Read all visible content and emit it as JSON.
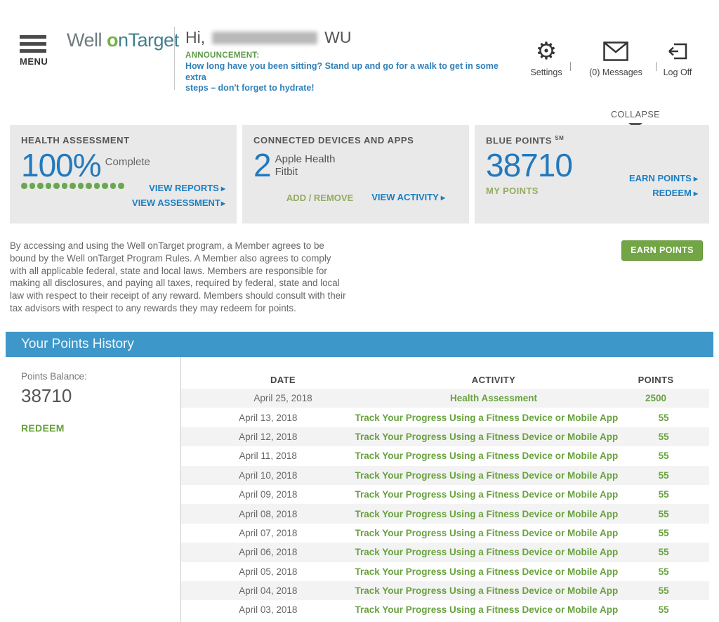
{
  "colors": {
    "accent_blue": "#2279bd",
    "link_blue": "#1b7ec2",
    "bar_blue": "#3e97c9",
    "green_strong": "#68a23e",
    "green_muted": "#94ab5e",
    "button_green": "#72a544",
    "panel_gray": "#e9e9e9"
  },
  "icons": {
    "arrow_right": "▶",
    "gear": "⚙"
  },
  "header": {
    "menu_label": "MENU",
    "logo": {
      "part1": "Well ",
      "part2": "o",
      "part3": "nTarget"
    },
    "greeting": {
      "prefix": "Hi,",
      "suffix": "WU"
    },
    "announcement_label": "ANNOUNCEMENT:",
    "announcement_text": "How long have you been sitting? Stand up and go for a walk to get in some extra\nsteps – don't forget to hydrate!",
    "actions": {
      "settings": "Settings",
      "messages": "(0) Messages",
      "logoff": "Log Off"
    }
  },
  "collapse_label": "COLLAPSE",
  "panels": {
    "health": {
      "title": "HEALTH ASSESSMENT",
      "value": "100%",
      "value_caption": "Complete",
      "dots_count": 13,
      "link_reports": "VIEW REPORTS",
      "link_assessment": "VIEW ASSESSMENT"
    },
    "devices": {
      "title": "CONNECTED DEVICES AND APPS",
      "count": "2",
      "items": {
        "0": "Apple Health",
        "1": "Fitbit"
      },
      "link_add_remove": "ADD / REMOVE",
      "link_view_activity": "VIEW ACTIVITY"
    },
    "blue_points": {
      "title": "BLUE POINTS",
      "title_sup": "SM",
      "value": "38710",
      "caption": "MY POINTS",
      "link_earn": "EARN POINTS",
      "link_redeem": "REDEEM"
    }
  },
  "legal_text": "By accessing and using the Well onTarget program, a Member agrees to be\nbound by the Well onTarget Program Rules. A Member also agrees to comply\nwith all applicable federal, state and local laws. Members are responsible for\nmaking all disclosures, and paying all taxes, required by federal, state and local\nlaw with respect to their receipt of any reward. Members should consult with their\ntax advisors with respect to any rewards they may redeem for points.",
  "earn_points_button": "EARN POINTS",
  "history": {
    "title": "Your Points History",
    "balance_label": "Points Balance:",
    "balance_value": "38710",
    "redeem_label": "REDEEM",
    "table": {
      "headers": {
        "date": "DATE",
        "activity": "ACTIVITY",
        "points": "POINTS"
      },
      "rows": [
        {
          "date": "April 25, 2018",
          "activity": "Health Assessment",
          "points": "2500"
        },
        {
          "date": "April 13, 2018",
          "activity": "Track Your Progress Using a Fitness Device or Mobile App",
          "points": "55"
        },
        {
          "date": "April 12, 2018",
          "activity": "Track Your Progress Using a Fitness Device or Mobile App",
          "points": "55"
        },
        {
          "date": "April 11, 2018",
          "activity": "Track Your Progress Using a Fitness Device or Mobile App",
          "points": "55"
        },
        {
          "date": "April 10, 2018",
          "activity": "Track Your Progress Using a Fitness Device or Mobile App",
          "points": "55"
        },
        {
          "date": "April 09, 2018",
          "activity": "Track Your Progress Using a Fitness Device or Mobile App",
          "points": "55"
        },
        {
          "date": "April 08, 2018",
          "activity": "Track Your Progress Using a Fitness Device or Mobile App",
          "points": "55"
        },
        {
          "date": "April 07, 2018",
          "activity": "Track Your Progress Using a Fitness Device or Mobile App",
          "points": "55"
        },
        {
          "date": "April 06, 2018",
          "activity": "Track Your Progress Using a Fitness Device or Mobile App",
          "points": "55"
        },
        {
          "date": "April 05, 2018",
          "activity": "Track Your Progress Using a Fitness Device or Mobile App",
          "points": "55"
        },
        {
          "date": "April 04, 2018",
          "activity": "Track Your Progress Using a Fitness Device or Mobile App",
          "points": "55"
        },
        {
          "date": "April 03, 2018",
          "activity": "Track Your Progress Using a Fitness Device or Mobile App",
          "points": "55"
        }
      ]
    }
  }
}
